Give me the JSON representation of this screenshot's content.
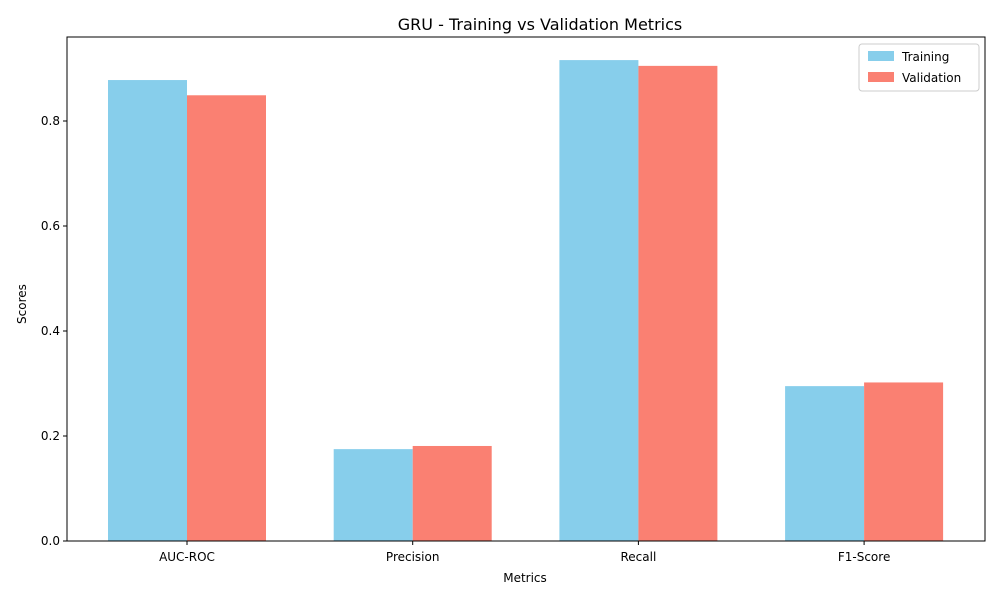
{
  "chart_data": {
    "type": "bar",
    "title": "GRU - Training vs Validation Metrics",
    "xlabel": "Metrics",
    "ylabel": "Scores",
    "categories": [
      "AUC-ROC",
      "Precision",
      "Recall",
      "F1-Score"
    ],
    "series": [
      {
        "name": "Training",
        "color": "#87ceeb",
        "values": [
          0.878,
          0.175,
          0.916,
          0.295
        ]
      },
      {
        "name": "Validation",
        "color": "#fa8072",
        "values": [
          0.849,
          0.181,
          0.905,
          0.302
        ]
      }
    ],
    "ylim": [
      0,
      0.96
    ],
    "yticks": [
      0.0,
      0.2,
      0.4,
      0.6,
      0.8
    ],
    "ytick_labels": [
      "0.0",
      "0.2",
      "0.4",
      "0.6",
      "0.8"
    ],
    "grid": false,
    "legend_position": "top-right"
  }
}
